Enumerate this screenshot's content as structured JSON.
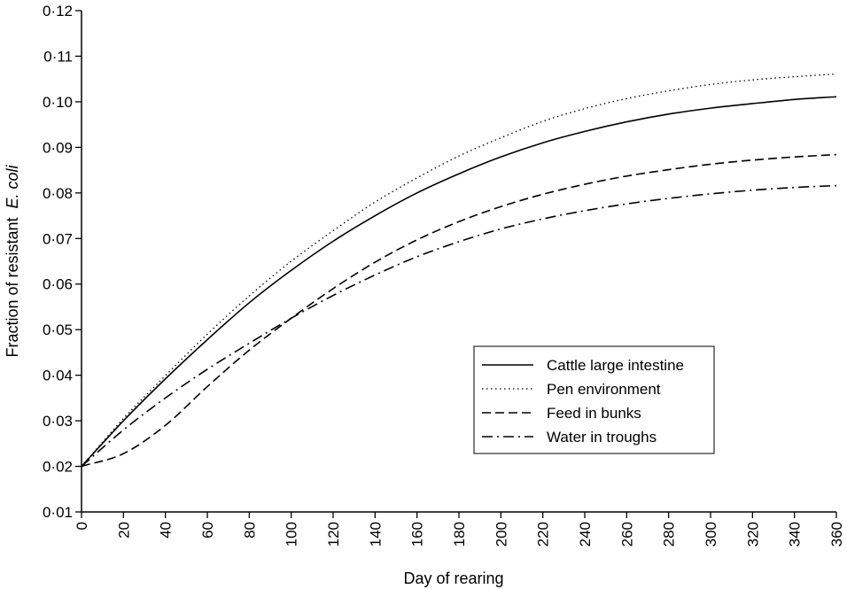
{
  "chart_data": {
    "type": "line",
    "xlabel": "Day of rearing",
    "ylabel": "Fraction of resistant",
    "ylabel_italic": "E. coli",
    "xlim": [
      0,
      360
    ],
    "ylim": [
      0.01,
      0.12
    ],
    "x_ticks": [
      0,
      20,
      40,
      60,
      80,
      100,
      120,
      140,
      160,
      180,
      200,
      220,
      240,
      260,
      280,
      300,
      320,
      340,
      360
    ],
    "x_tick_labels": [
      "0",
      "20",
      "40",
      "60",
      "80",
      "100",
      "120",
      "140",
      "160",
      "180",
      "200",
      "220",
      "240",
      "260",
      "280",
      "300",
      "320",
      "340",
      "360"
    ],
    "y_ticks": [
      0.01,
      0.02,
      0.03,
      0.04,
      0.05,
      0.06,
      0.07,
      0.08,
      0.09,
      0.1,
      0.11,
      0.12
    ],
    "y_tick_labels": [
      "0·01",
      "0·02",
      "0·03",
      "0·04",
      "0·05",
      "0·06",
      "0·07",
      "0·08",
      "0·09",
      "0·10",
      "0·11",
      "0·12"
    ],
    "grid": false,
    "legend_position": "right-center",
    "x": [
      0,
      20,
      40,
      60,
      80,
      100,
      120,
      140,
      160,
      180,
      200,
      220,
      240,
      260,
      280,
      300,
      320,
      340,
      360
    ],
    "series": [
      {
        "name": "Cattle large intestine",
        "dash": "solid",
        "values": [
          0.02,
          0.03,
          0.0392,
          0.0478,
          0.0559,
          0.063,
          0.0694,
          0.075,
          0.08,
          0.0842,
          0.0879,
          0.091,
          0.0935,
          0.0956,
          0.0973,
          0.0986,
          0.0996,
          0.1005,
          0.1011
        ]
      },
      {
        "name": "Pen environment",
        "dash": "dotted",
        "values": [
          0.02,
          0.0305,
          0.0399,
          0.049,
          0.0574,
          0.065,
          0.0717,
          0.078,
          0.0833,
          0.0881,
          0.0921,
          0.0957,
          0.0985,
          0.1007,
          0.1024,
          0.1038,
          0.1048,
          0.1055,
          0.1061
        ]
      },
      {
        "name": "Feed in bunks",
        "dash": "dashed",
        "values": [
          0.02,
          0.0228,
          0.029,
          0.0375,
          0.0455,
          0.0525,
          0.059,
          0.0648,
          0.0697,
          0.0737,
          0.077,
          0.0797,
          0.0819,
          0.0837,
          0.0851,
          0.0863,
          0.0872,
          0.0879,
          0.0884
        ]
      },
      {
        "name": "Water in troughs",
        "dash": "dashdot",
        "values": [
          0.02,
          0.028,
          0.035,
          0.0413,
          0.047,
          0.0525,
          0.0575,
          0.062,
          0.066,
          0.0693,
          0.0721,
          0.0743,
          0.0761,
          0.0776,
          0.0788,
          0.0798,
          0.0806,
          0.0812,
          0.0816
        ]
      }
    ]
  }
}
